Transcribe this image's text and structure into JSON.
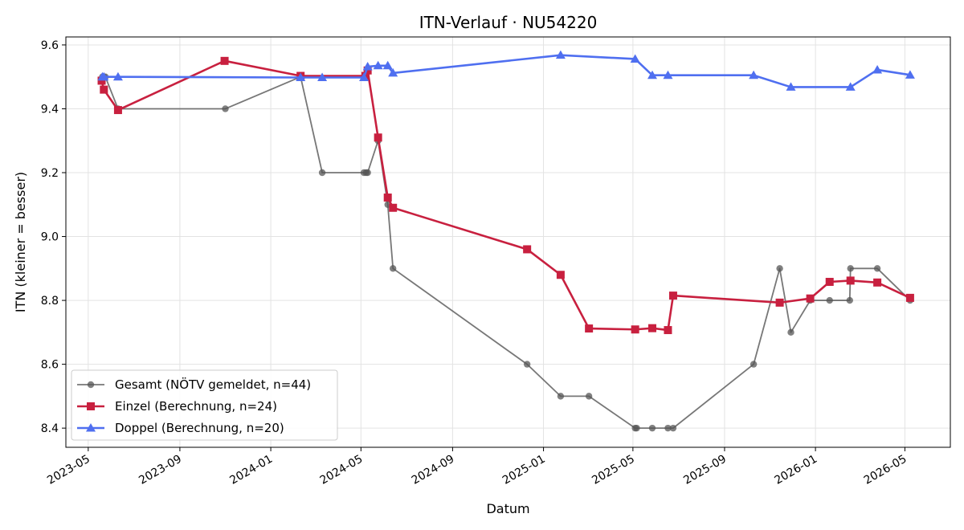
{
  "chart_data": {
    "type": "line",
    "title": "ITN-Verlauf · NU54220",
    "xlabel": "Datum",
    "ylabel": "ITN  (kleiner = besser)",
    "x_ticks": [
      "2023-05",
      "2023-09",
      "2024-01",
      "2024-05",
      "2024-09",
      "2025-01",
      "2025-05",
      "2025-09",
      "2026-01",
      "2026-05"
    ],
    "y_ticks": [
      "8.4",
      "8.6",
      "8.8",
      "9.0",
      "9.2",
      "9.4",
      "9.6"
    ],
    "xlim": [
      "2023-04-01",
      "2026-07-01"
    ],
    "ylim": [
      8.34,
      9.625
    ],
    "grid": true,
    "legend": "lower-left",
    "series": [
      {
        "name": "Gesamt (NÖTV gemeldet, n=44)",
        "color": "#555555",
        "marker": "circle",
        "points": [
          [
            "2023-05-20",
            9.5
          ],
          [
            "2023-05-22",
            9.5
          ],
          [
            "2023-05-24",
            9.5
          ],
          [
            "2023-06-10",
            9.4
          ],
          [
            "2023-11-01",
            9.4
          ],
          [
            "2024-02-10",
            9.5
          ],
          [
            "2024-03-10",
            9.2
          ],
          [
            "2024-05-05",
            9.2
          ],
          [
            "2024-05-08",
            9.2
          ],
          [
            "2024-05-10",
            9.2
          ],
          [
            "2024-05-24",
            9.3
          ],
          [
            "2024-06-06",
            9.1
          ],
          [
            "2024-06-13",
            8.9
          ],
          [
            "2024-12-10",
            8.6
          ],
          [
            "2025-01-24",
            8.5
          ],
          [
            "2025-03-03",
            8.5
          ],
          [
            "2025-05-04",
            8.4
          ],
          [
            "2025-05-06",
            8.4
          ],
          [
            "2025-05-27",
            8.4
          ],
          [
            "2025-06-17",
            8.4
          ],
          [
            "2025-06-24",
            8.4
          ],
          [
            "2025-10-10",
            8.6
          ],
          [
            "2025-11-14",
            8.9
          ],
          [
            "2025-11-29",
            8.7
          ],
          [
            "2025-12-25",
            8.8
          ],
          [
            "2026-01-20",
            8.8
          ],
          [
            "2026-02-16",
            8.8
          ],
          [
            "2026-02-17",
            8.9
          ],
          [
            "2026-03-25",
            8.9
          ],
          [
            "2026-05-08",
            8.8
          ]
        ]
      },
      {
        "name": "Einzel (Berechnung, n=24)",
        "color": "#c8203f",
        "marker": "square",
        "points": [
          [
            "2023-05-19",
            9.488
          ],
          [
            "2023-05-22",
            9.46
          ],
          [
            "2023-06-10",
            9.396
          ],
          [
            "2023-10-31",
            9.55
          ],
          [
            "2024-02-10",
            9.503
          ],
          [
            "2024-05-07",
            9.503
          ],
          [
            "2024-05-10",
            9.52
          ],
          [
            "2024-05-24",
            9.31
          ],
          [
            "2024-06-06",
            9.122
          ],
          [
            "2024-06-13",
            9.09
          ],
          [
            "2024-12-10",
            8.96
          ],
          [
            "2025-01-24",
            8.88
          ],
          [
            "2025-03-03",
            8.712
          ],
          [
            "2025-05-04",
            8.709
          ],
          [
            "2025-05-27",
            8.713
          ],
          [
            "2025-06-17",
            8.707
          ],
          [
            "2025-06-24",
            8.815
          ],
          [
            "2025-11-14",
            8.793
          ],
          [
            "2025-12-25",
            8.806
          ],
          [
            "2026-01-20",
            8.858
          ],
          [
            "2026-02-17",
            8.862
          ],
          [
            "2026-03-25",
            8.856
          ],
          [
            "2026-05-08",
            8.808
          ]
        ]
      },
      {
        "name": "Doppel (Berechnung, n=20)",
        "color": "#4f6ff0",
        "marker": "triangle",
        "points": [
          [
            "2023-05-20",
            9.5
          ],
          [
            "2023-05-22",
            9.5
          ],
          [
            "2023-06-10",
            9.5
          ],
          [
            "2024-02-10",
            9.498
          ],
          [
            "2024-03-10",
            9.498
          ],
          [
            "2024-05-05",
            9.498
          ],
          [
            "2024-05-10",
            9.532
          ],
          [
            "2024-05-24",
            9.535
          ],
          [
            "2024-06-06",
            9.535
          ],
          [
            "2024-06-13",
            9.512
          ],
          [
            "2025-01-24",
            9.568
          ],
          [
            "2025-05-04",
            9.556
          ],
          [
            "2025-05-27",
            9.505
          ],
          [
            "2025-06-17",
            9.505
          ],
          [
            "2025-10-10",
            9.505
          ],
          [
            "2025-11-29",
            9.468
          ],
          [
            "2026-02-17",
            9.468
          ],
          [
            "2026-03-25",
            9.522
          ],
          [
            "2026-05-08",
            9.506
          ]
        ]
      }
    ]
  }
}
